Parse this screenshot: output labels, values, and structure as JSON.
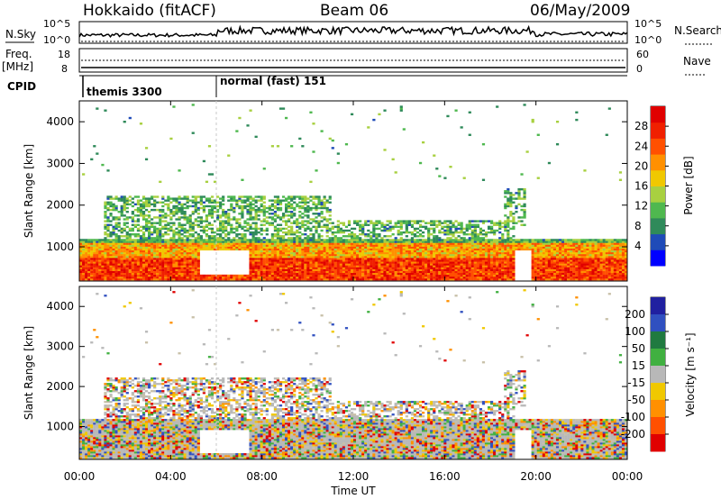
{
  "header": {
    "station": "Hokkaido (fitACF)",
    "beam": "Beam 06",
    "date": "06/May/2009"
  },
  "strips": {
    "nsky": {
      "label": "N.Sky",
      "tick_top": "10^5",
      "tick_bottom": "10^0",
      "right_label": "N.Search",
      "right_tick_top": "10^5",
      "right_tick_bottom": "10^0"
    },
    "freq": {
      "label_line1": "Freq.",
      "label_line2": "[MHz]",
      "tick_top": "18",
      "tick_bottom": "8",
      "right_label": "Nave",
      "right_tick_top": "60",
      "right_tick_bottom": "0"
    },
    "cpid": {
      "label": "CPID",
      "segments": [
        {
          "start_hour": 0.0,
          "text": "themis 3300"
        },
        {
          "start_hour": 6.0,
          "text": "normal (fast) 151"
        }
      ]
    }
  },
  "chart_data": [
    {
      "type": "heatmap",
      "panel": "power",
      "xlabel": "",
      "ylabel": "Slant Range [km]",
      "x_range_hours": [
        0,
        24
      ],
      "ylim": [
        180,
        4500
      ],
      "yticks": [
        "1000",
        "2000",
        "3000",
        "4000"
      ],
      "yticks_values": [
        1000,
        2000,
        3000,
        4000
      ],
      "colorbar": {
        "label": "Power [dB]",
        "ticks": [
          "4",
          "8",
          "12",
          "16",
          "20",
          "24",
          "28"
        ],
        "tick_values": [
          4,
          8,
          12,
          16,
          20,
          24,
          28
        ],
        "range": [
          0,
          32
        ],
        "colors": [
          "#0000ff",
          "#1f4bb8",
          "#2f8a5a",
          "#4fb84f",
          "#a8d040",
          "#f0c800",
          "#ff9000",
          "#ff5000",
          "#f02000",
          "#e00000"
        ]
      }
    },
    {
      "type": "heatmap",
      "panel": "velocity",
      "xlabel": "Time UT",
      "ylabel": "Slant Range [km]",
      "x_range_hours": [
        0,
        24
      ],
      "xticks": [
        "00:00",
        "04:00",
        "08:00",
        "12:00",
        "16:00",
        "20:00",
        "00:00"
      ],
      "ylim": [
        180,
        4500
      ],
      "yticks": [
        "1000",
        "2000",
        "3000",
        "4000"
      ],
      "yticks_values": [
        1000,
        2000,
        3000,
        4000
      ],
      "colorbar": {
        "label": "Velocity [m s⁻¹]",
        "ticks": [
          "200",
          "100",
          "50",
          "15",
          "-15",
          "-50",
          "-100",
          "-200"
        ],
        "band_colors": [
          "#2020a0",
          "#3050c0",
          "#207a40",
          "#40b040",
          "#b8b8b8",
          "#f0c800",
          "#ff9000",
          "#ff5000",
          "#e00000"
        ]
      }
    }
  ]
}
